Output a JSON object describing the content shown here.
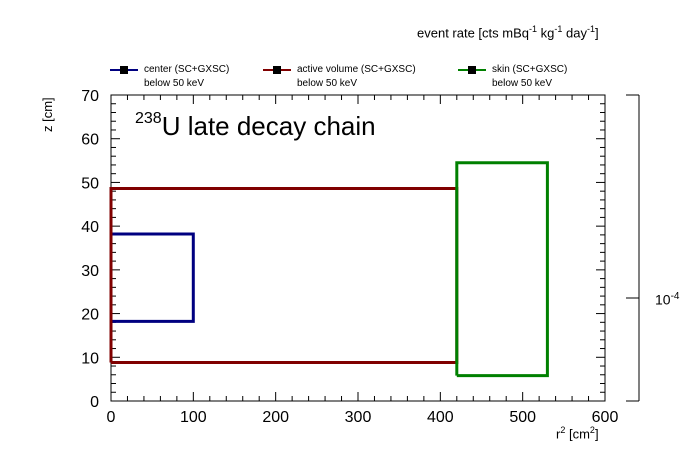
{
  "chart_data": {
    "type": "line",
    "title": "",
    "color_axis_title": "event rate [cts mBq^-1 kg^-1 day^-1]",
    "color_axis_title_parts": {
      "a": "event rate [cts mBq",
      "e1": "-1",
      "b": " kg",
      "e2": "-1",
      "c": " day",
      "e3": "-1",
      "d": "]"
    },
    "color_axis_tick_label": {
      "base": "10",
      "exp": "-4"
    },
    "annotation": {
      "sup": "238",
      "text": "U late decay chain"
    },
    "xlabel": {
      "base": "r",
      "sup": "2",
      "rest": " [cm",
      "sup2": "2",
      "end": "]"
    },
    "ylabel": "z [cm]",
    "xlim": [
      0,
      600
    ],
    "ylim": [
      0,
      70
    ],
    "x_ticks": [
      0,
      100,
      200,
      300,
      400,
      500,
      600
    ],
    "y_ticks": [
      0,
      10,
      20,
      30,
      40,
      50,
      60,
      70
    ],
    "grid": false,
    "legend_position": "top",
    "series": [
      {
        "name": "center (SC+GXSC)",
        "subname": "below 50 keV",
        "color": "#000080",
        "x": [
          0,
          100,
          100,
          0,
          0
        ],
        "y": [
          18.2,
          18.2,
          38.2,
          38.2,
          18.2
        ]
      },
      {
        "name": "active volume (SC+GXSC)",
        "subname": "below 50 keV",
        "color": "#800000",
        "x": [
          0,
          420,
          420,
          0,
          0
        ],
        "y": [
          8.8,
          8.8,
          48.6,
          48.6,
          8.8
        ]
      },
      {
        "name": "skin (SC+GXSC)",
        "subname": "below 50 keV",
        "color": "#008000",
        "x": [
          420,
          530,
          530,
          420,
          420
        ],
        "y": [
          5.8,
          5.8,
          54.5,
          54.5,
          5.8
        ]
      }
    ]
  }
}
